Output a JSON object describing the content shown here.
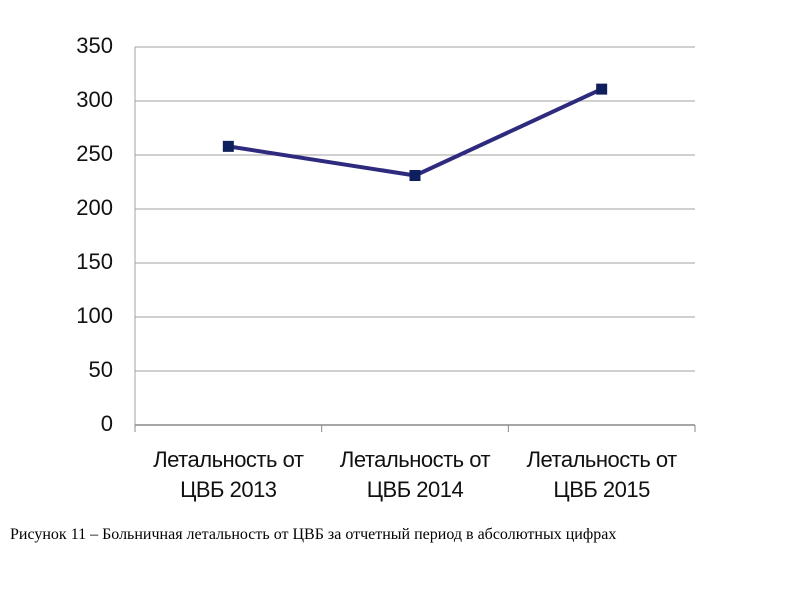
{
  "chart_data": {
    "type": "line",
    "categories": [
      "Летальность от ЦВБ 2013",
      "Летальность от ЦВБ 2014",
      "Летальность от ЦВБ 2015"
    ],
    "values": [
      258,
      231,
      311
    ],
    "color": "#2e2a7e",
    "marker_color": "#0f1f5e",
    "ylim": [
      0,
      350
    ],
    "yticks": [
      0,
      50,
      100,
      150,
      200,
      250,
      300,
      350
    ],
    "grid": true
  },
  "caption": "Рисунок 11 – Больничная летальность от ЦВБ за отчетный период в абсолютных цифрах"
}
